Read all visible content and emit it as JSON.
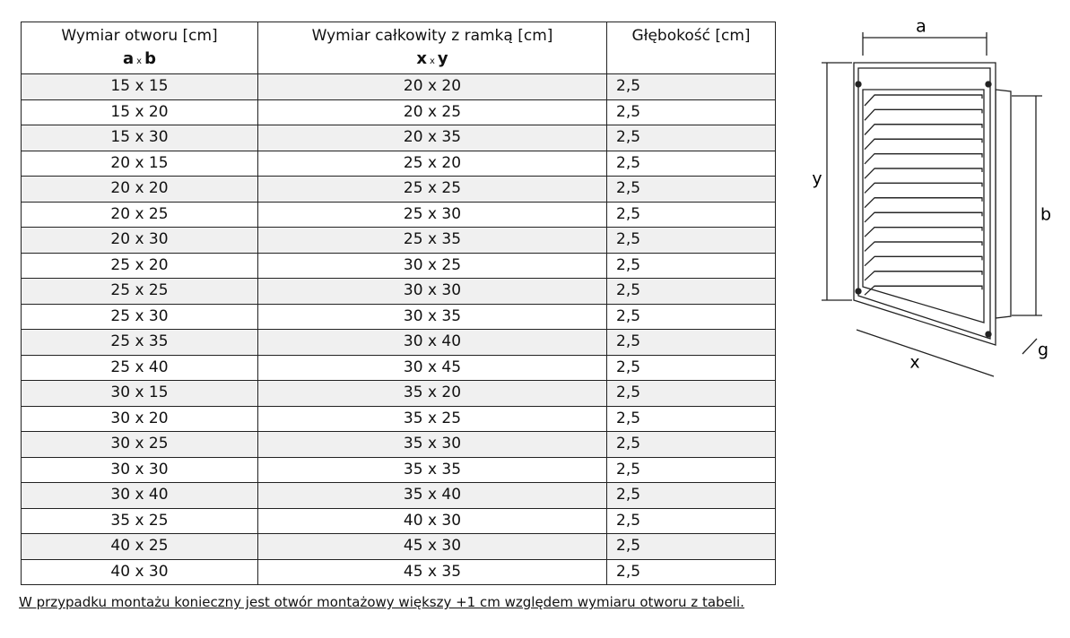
{
  "table": {
    "columns": [
      {
        "label": "Wymiar otworu [cm]",
        "dims": [
          "a",
          "x",
          "b"
        ]
      },
      {
        "label": "Wymiar całkowity z ramką [cm]",
        "dims": [
          "x",
          "x",
          "y"
        ]
      },
      {
        "label": "Głębokość [cm]"
      }
    ],
    "rows": [
      [
        "15 x 15",
        "20 x 20",
        "2,5"
      ],
      [
        "15 x 20",
        "20 x 25",
        "2,5"
      ],
      [
        "15 x 30",
        "20 x 35",
        "2,5"
      ],
      [
        "20 x 15",
        "25 x 20",
        "2,5"
      ],
      [
        "20 x 20",
        "25 x 25",
        "2,5"
      ],
      [
        "20 x 25",
        "25 x 30",
        "2,5"
      ],
      [
        "20 x 30",
        "25 x 35",
        "2,5"
      ],
      [
        "25 x 20",
        "30 x 25",
        "2,5"
      ],
      [
        "25 x 25",
        "30 x 30",
        "2,5"
      ],
      [
        "25 x 30",
        "30 x 35",
        "2,5"
      ],
      [
        "25 x 35",
        "30 x 40",
        "2,5"
      ],
      [
        "25 x 40",
        "30 x 45",
        "2,5"
      ],
      [
        "30 x 15",
        "35 x 20",
        "2,5"
      ],
      [
        "30 x 20",
        "35 x 25",
        "2,5"
      ],
      [
        "30 x 25",
        "35 x 30",
        "2,5"
      ],
      [
        "30 x 30",
        "35 x 35",
        "2,5"
      ],
      [
        "30 x 40",
        "35 x 40",
        "2,5"
      ],
      [
        "35 x 25",
        "40 x 30",
        "2,5"
      ],
      [
        "40 x 25",
        "45 x 30",
        "2,5"
      ],
      [
        "40 x 30",
        "45 x 35",
        "2,5"
      ]
    ]
  },
  "diagram": {
    "labels": {
      "a": "a",
      "y": "y",
      "b": "b",
      "x": "x",
      "g": "g"
    }
  },
  "note": "W przypadku montażu konieczny jest otwór montażowy większy +1 cm względem wymiaru otworu z tabeli."
}
